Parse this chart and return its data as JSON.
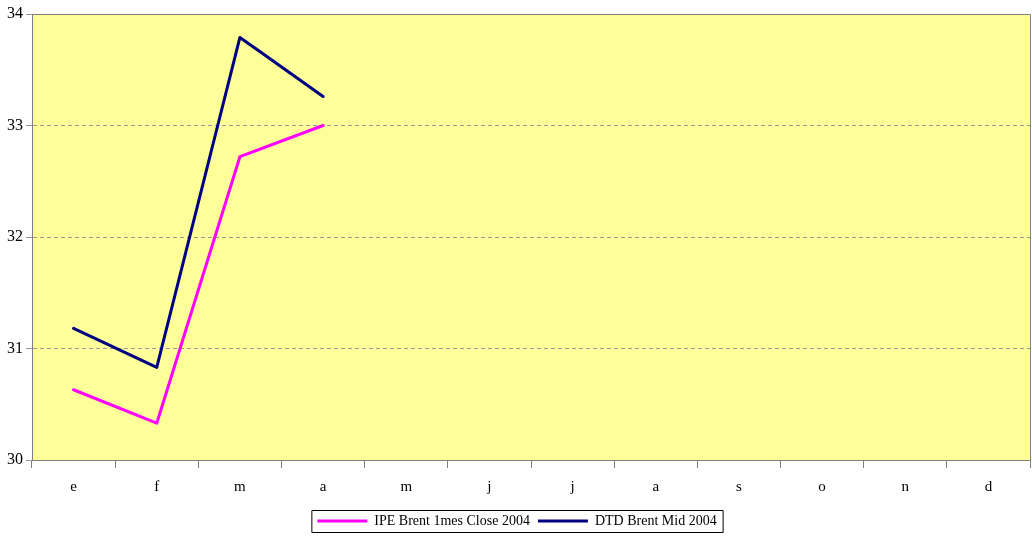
{
  "chart_data": {
    "type": "line",
    "categories": [
      "e",
      "f",
      "m",
      "a",
      "m",
      "j",
      "j",
      "a",
      "s",
      "o",
      "n",
      "d"
    ],
    "series": [
      {
        "name": "IPE Brent 1mes Close 2004",
        "color": "#ff00ff",
        "values": [
          30.63,
          30.33,
          32.72,
          33.0,
          null,
          null,
          null,
          null,
          null,
          null,
          null,
          null
        ]
      },
      {
        "name": "DTD Brent Mid 2004",
        "color": "#000080",
        "values": [
          31.18,
          30.83,
          33.79,
          33.26,
          null,
          null,
          null,
          null,
          null,
          null,
          null,
          null
        ]
      }
    ],
    "ylim": [
      30,
      34
    ],
    "yticks": [
      30,
      31,
      32,
      33,
      34
    ],
    "grid": "y",
    "legend": "bottom",
    "marker": "none",
    "line_style": "solid"
  }
}
